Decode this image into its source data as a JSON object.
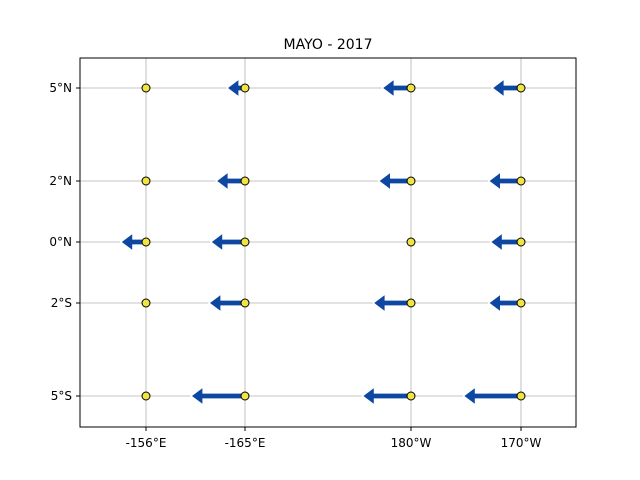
{
  "chart_data": {
    "type": "scatter",
    "title": "MAYO - 2017",
    "xlabel": "",
    "ylabel": "",
    "grid": true,
    "legend": "none",
    "x_ticks": [
      "-156°E",
      "-165°E",
      "180°W",
      "170°W"
    ],
    "y_ticks": [
      "5°N",
      "2°N",
      "0°N",
      "2°S",
      "5°S"
    ],
    "marker_color": "#f0e442",
    "arrow_color": "#0d47a1",
    "arrow_outline_color": "#ffffff",
    "note_units": "wind vector u-component (arbitrary units, negative = westward)",
    "vectors": [
      {
        "lon": "-156°E",
        "lat": "5°N",
        "u": 0
      },
      {
        "lon": "-165°E",
        "lat": "5°N",
        "u": -1.0
      },
      {
        "lon": "180°W",
        "lat": "5°N",
        "u": -1.6
      },
      {
        "lon": "170°W",
        "lat": "5°N",
        "u": -1.6
      },
      {
        "lon": "-156°E",
        "lat": "2°N",
        "u": 0
      },
      {
        "lon": "-165°E",
        "lat": "2°N",
        "u": -1.6
      },
      {
        "lon": "180°W",
        "lat": "2°N",
        "u": -1.8
      },
      {
        "lon": "170°W",
        "lat": "2°N",
        "u": -1.8
      },
      {
        "lon": "-156°E",
        "lat": "0°N",
        "u": -1.4
      },
      {
        "lon": "-165°E",
        "lat": "0°N",
        "u": -1.9
      },
      {
        "lon": "180°W",
        "lat": "0°N",
        "u": 0
      },
      {
        "lon": "170°W",
        "lat": "0°N",
        "u": -1.7
      },
      {
        "lon": "-156°E",
        "lat": "2°S",
        "u": 0
      },
      {
        "lon": "-165°E",
        "lat": "2°S",
        "u": -2.0
      },
      {
        "lon": "180°W",
        "lat": "2°S",
        "u": -2.1
      },
      {
        "lon": "170°W",
        "lat": "2°S",
        "u": -1.8
      },
      {
        "lon": "-156°E",
        "lat": "5°S",
        "u": 0
      },
      {
        "lon": "-165°E",
        "lat": "5°S",
        "u": -3.0
      },
      {
        "lon": "180°W",
        "lat": "5°S",
        "u": -2.7
      },
      {
        "lon": "170°W",
        "lat": "5°S",
        "u": -3.2
      }
    ]
  }
}
